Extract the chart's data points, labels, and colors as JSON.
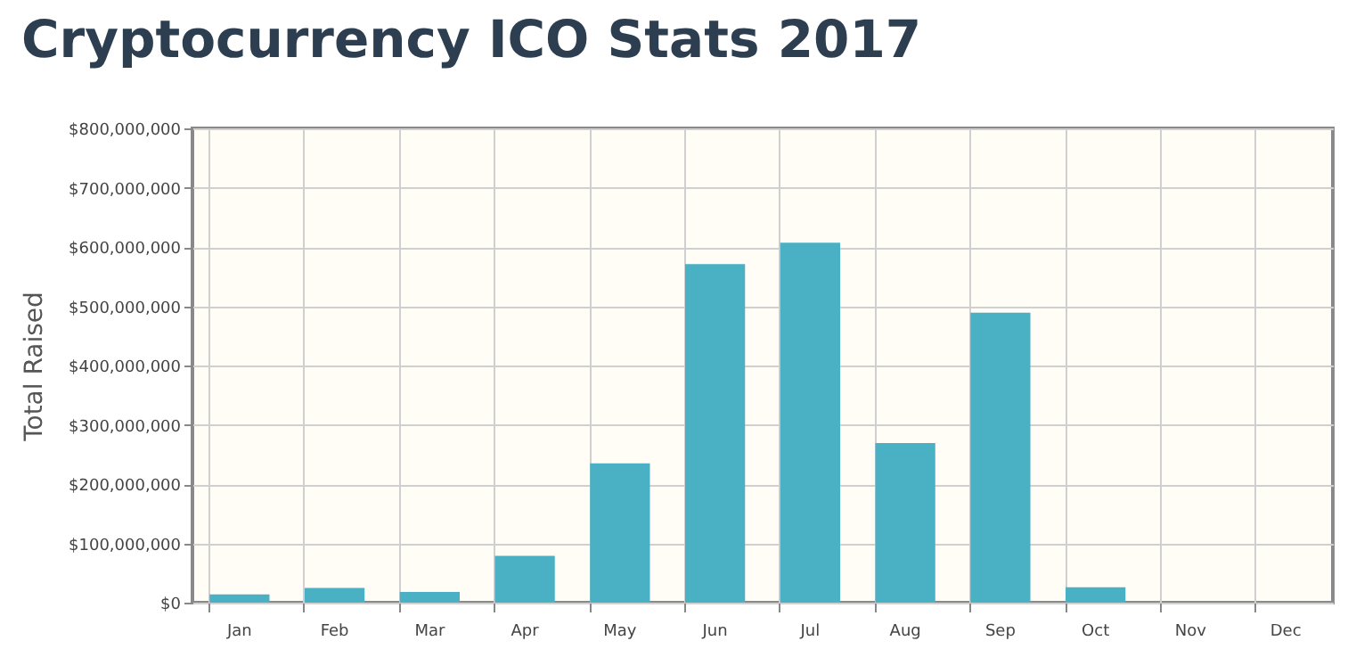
{
  "chart_data": {
    "type": "bar",
    "title": "Cryptocurrency ICO Stats 2017",
    "ylabel": "Total Raised",
    "categories": [
      "Jan",
      "Feb",
      "Mar",
      "Apr",
      "May",
      "Jun",
      "Jul",
      "Aug",
      "Sep",
      "Oct",
      "Nov",
      "Dec"
    ],
    "values": [
      14000000,
      25000000,
      18000000,
      79000000,
      235000000,
      571000000,
      607000000,
      269000000,
      489000000,
      26000000,
      0,
      0
    ],
    "color": "#4ab0c4",
    "ylim": [
      0,
      800000000
    ],
    "yticks": [
      {
        "value": 0,
        "label": "$0"
      },
      {
        "value": 100000000,
        "label": "$100,000,000"
      },
      {
        "value": 200000000,
        "label": "$200,000,000"
      },
      {
        "value": 300000000,
        "label": "$300,000,000"
      },
      {
        "value": 400000000,
        "label": "$400,000,000"
      },
      {
        "value": 500000000,
        "label": "$500,000,000"
      },
      {
        "value": 600000000,
        "label": "$600,000,000"
      },
      {
        "value": 700000000,
        "label": "$700,000,000"
      },
      {
        "value": 800000000,
        "label": "$800,000,000"
      }
    ],
    "grid": true
  }
}
